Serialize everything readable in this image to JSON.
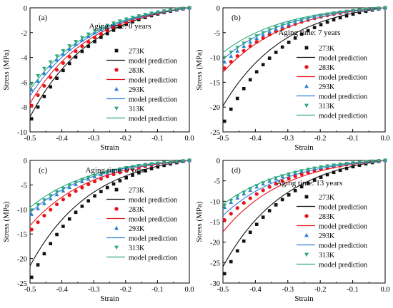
{
  "figure": {
    "series_styles": [
      {
        "temp_color": "#111111",
        "marker": "square"
      },
      {
        "temp_color": "#e8141b",
        "marker": "circle"
      },
      {
        "temp_color": "#2f7fd6",
        "marker": "triangle-up"
      },
      {
        "temp_color": "#2ea87e",
        "marker": "triangle-down"
      }
    ],
    "line_colors": [
      "#111111",
      "#e8141b",
      "#2f7fd6",
      "#2ea87e"
    ]
  },
  "chart_data": [
    {
      "type": "scatter",
      "panel": "(a)",
      "legend_title": "Aging time: 0 years",
      "xlabel": "Strain",
      "ylabel": "Stress (MPa)",
      "xlim": [
        -0.5,
        0.0
      ],
      "ylim": [
        -10,
        0
      ],
      "xticks": [
        "-0.5",
        "-0.4",
        "-0.3",
        "-0.2",
        "-0.1",
        "0.0"
      ],
      "yticks": [
        "-10",
        "-8",
        "-6",
        "-4",
        "-2",
        "0"
      ],
      "yticks_values": [
        -10,
        -8,
        -6,
        -4,
        -2,
        0
      ],
      "series": [
        {
          "name": "273K",
          "line_label": "model prediction",
          "exp_end": -9.2,
          "model_end": -8.8
        },
        {
          "name": "283K",
          "line_label": "model prediction",
          "exp_end": -8.1,
          "model_end": -7.7
        },
        {
          "name": "293K",
          "line_label": "model prediction",
          "exp_end": -6.8,
          "model_end": -7.1
        },
        {
          "name": "313K",
          "line_label": "model prediction",
          "exp_end": -6.3,
          "model_end": -6.6
        }
      ]
    },
    {
      "type": "scatter",
      "panel": "(b)",
      "legend_title": "Aging time: 7 years",
      "xlabel": "Strain",
      "ylabel": "Stress (MPa)",
      "xlim": [
        -0.5,
        0.0
      ],
      "ylim": [
        -25,
        0
      ],
      "xticks": [
        "-0.5",
        "-0.4",
        "-0.3",
        "-0.2",
        "-0.1",
        "0.0"
      ],
      "yticks": [
        "-25",
        "-20",
        "-15",
        "-10",
        "-5",
        "0"
      ],
      "yticks_values": [
        -25,
        -20,
        -15,
        -10,
        -5,
        0
      ],
      "series": [
        {
          "name": "273K",
          "line_label": "model prediction",
          "exp_end": -23.5,
          "model_end": -19.8
        },
        {
          "name": "283K",
          "line_label": "model prediction",
          "exp_end": -12.5,
          "model_end": -13.0
        },
        {
          "name": "293K",
          "line_label": "model prediction",
          "exp_end": -11.2,
          "model_end": -10.4
        },
        {
          "name": "313K",
          "line_label": "model prediction",
          "exp_end": -10.3,
          "model_end": -9.0
        }
      ]
    },
    {
      "type": "scatter",
      "panel": "(c)",
      "legend_title": "Aging time: 9 years",
      "xlabel": "Strain",
      "ylabel": "Stress (MPa)",
      "xlim": [
        -0.5,
        0.0
      ],
      "ylim": [
        -25,
        0
      ],
      "xticks": [
        "-0.5",
        "-0.4",
        "-0.3",
        "-0.2",
        "-0.1",
        "0.0"
      ],
      "yticks": [
        "-25",
        "-20",
        "-15",
        "-10",
        "-5",
        "0"
      ],
      "yticks_values": [
        -25,
        -20,
        -15,
        -10,
        -5,
        0
      ],
      "series": [
        {
          "name": "273K",
          "line_label": "model prediction",
          "exp_end": -24.5,
          "model_end": -21.5
        },
        {
          "name": "283K",
          "line_label": "model prediction",
          "exp_end": -14.5,
          "model_end": -13.3
        },
        {
          "name": "293K",
          "line_label": "model prediction",
          "exp_end": -11.3,
          "model_end": -10.7
        },
        {
          "name": "313K",
          "line_label": "model prediction",
          "exp_end": -10.4,
          "model_end": -9.6
        }
      ]
    },
    {
      "type": "scatter",
      "panel": "(d)",
      "legend_title": "Aging time: 13 years",
      "xlabel": "Strain",
      "ylabel": "Stress (MPa)",
      "xlim": [
        -0.5,
        0.0
      ],
      "ylim": [
        -30,
        0
      ],
      "xticks": [
        "-0.5",
        "-0.4",
        "-0.3",
        "-0.2",
        "-0.1",
        "0.0"
      ],
      "yticks": [
        "-30",
        "-25",
        "-20",
        "-15",
        "-10",
        "-5",
        "0"
      ],
      "yticks_values": [
        -30,
        -25,
        -20,
        -15,
        -10,
        -5,
        0
      ],
      "series": [
        {
          "name": "273K",
          "line_label": "model prediction",
          "exp_end": -28.5,
          "model_end": -26.0
        },
        {
          "name": "283K",
          "line_label": "model prediction",
          "exp_end": -15.0,
          "model_end": -17.5
        },
        {
          "name": "293K",
          "line_label": "model prediction",
          "exp_end": -11.8,
          "model_end": -13.5
        },
        {
          "name": "313K",
          "line_label": "model prediction",
          "exp_end": -11.3,
          "model_end": -10.8
        }
      ]
    }
  ]
}
